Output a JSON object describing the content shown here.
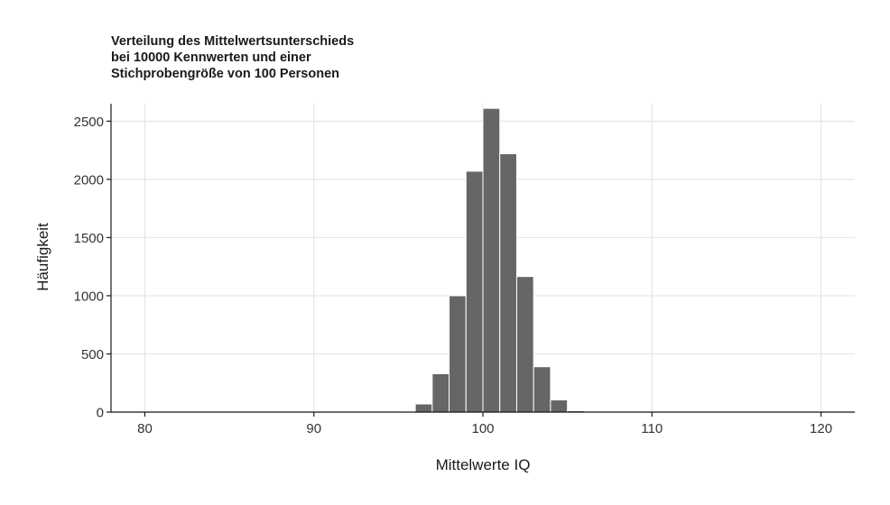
{
  "chart_data": {
    "type": "bar",
    "title_lines": [
      "Verteilung des Mittelwertsunterschieds",
      "bei 10000 Kennwerten und einer",
      "Stichprobengröße von 100 Personen"
    ],
    "xlabel": "Mittelwerte IQ",
    "ylabel": "Häufigkeit",
    "xlim": [
      78,
      122
    ],
    "ylim": [
      0,
      2650
    ],
    "xticks": [
      80,
      90,
      100,
      110,
      120
    ],
    "yticks": [
      0,
      500,
      1000,
      1500,
      2000,
      2500
    ],
    "grid": true,
    "bin_width": 1,
    "bins": [
      {
        "start": 95,
        "end": 96,
        "count": 2
      },
      {
        "start": 96,
        "end": 97,
        "count": 70
      },
      {
        "start": 97,
        "end": 98,
        "count": 330
      },
      {
        "start": 98,
        "end": 99,
        "count": 1000
      },
      {
        "start": 99,
        "end": 100,
        "count": 2070
      },
      {
        "start": 100,
        "end": 101,
        "count": 2610
      },
      {
        "start": 101,
        "end": 102,
        "count": 2220
      },
      {
        "start": 102,
        "end": 103,
        "count": 1165
      },
      {
        "start": 103,
        "end": 104,
        "count": 390
      },
      {
        "start": 104,
        "end": 105,
        "count": 105
      },
      {
        "start": 105,
        "end": 106,
        "count": 12
      }
    ],
    "bar_color": "#666666",
    "grid_color": "#e5e5e5",
    "axis_color": "#1a1a1a"
  }
}
